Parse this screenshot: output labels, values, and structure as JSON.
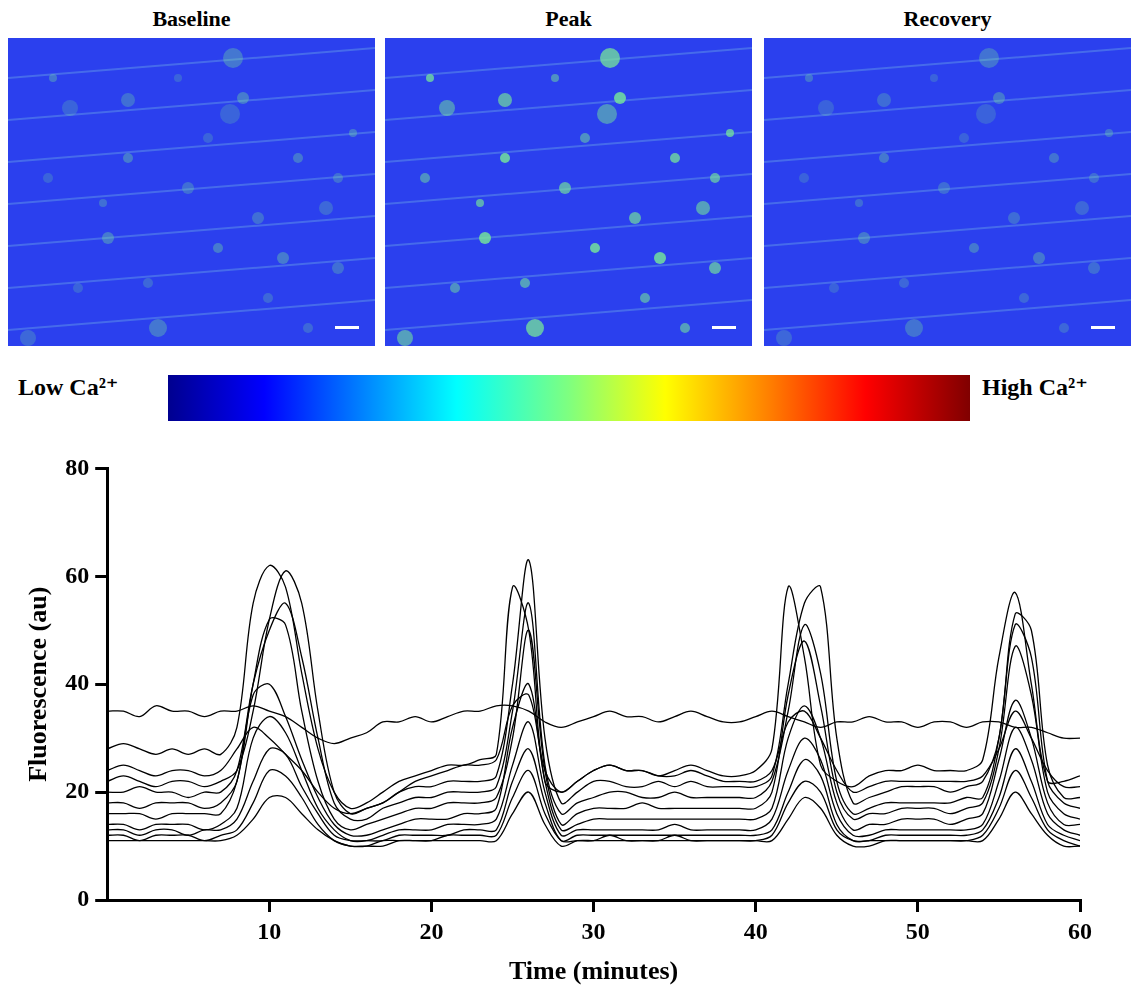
{
  "figure": {
    "panels": [
      {
        "title": "Baseline"
      },
      {
        "title": "Peak"
      },
      {
        "title": "Recovery"
      }
    ],
    "colorbar": {
      "low_label": "Low Ca²⁺",
      "high_label": "High Ca²⁺"
    }
  },
  "chart_data": {
    "type": "line",
    "x_label": "Time (minutes)",
    "y_label": "Fluorescence (au)",
    "color": "#000000",
    "grid": false,
    "x": [
      0,
      1,
      2,
      3,
      4,
      5,
      6,
      7,
      8,
      9,
      10,
      11,
      12,
      13,
      14,
      15,
      16,
      17,
      18,
      19,
      20,
      21,
      22,
      23,
      24,
      25,
      26,
      27,
      28,
      29,
      30,
      31,
      32,
      33,
      34,
      35,
      36,
      37,
      38,
      39,
      40,
      41,
      42,
      43,
      44,
      45,
      46,
      47,
      48,
      49,
      50,
      51,
      52,
      53,
      54,
      55,
      56,
      57,
      58,
      59,
      60
    ],
    "xlim": [
      0,
      60
    ],
    "xticks": [
      10,
      20,
      30,
      40,
      50,
      60
    ],
    "ylim": [
      0,
      80
    ],
    "yticks": [
      0,
      20,
      40,
      60,
      80
    ],
    "series": [
      {
        "values": [
          35,
          35,
          34,
          36,
          35,
          35,
          34,
          35,
          35,
          36,
          35,
          34,
          32,
          30,
          29,
          30,
          31,
          33,
          33,
          34,
          33,
          34,
          35,
          35,
          36,
          36,
          35,
          33,
          32,
          33,
          34,
          35,
          34,
          34,
          33,
          34,
          35,
          34,
          33,
          33,
          34,
          35,
          34,
          33,
          32,
          33,
          33,
          34,
          33,
          33,
          32,
          33,
          33,
          32,
          33,
          33,
          32,
          32,
          31,
          30,
          30
        ]
      },
      {
        "values": [
          28,
          29,
          28,
          27,
          28,
          27,
          28,
          27,
          32,
          55,
          62,
          58,
          42,
          28,
          20,
          17,
          18,
          20,
          22,
          23,
          24,
          25,
          25,
          26,
          27,
          58,
          50,
          22,
          20,
          22,
          24,
          25,
          24,
          24,
          23,
          24,
          25,
          24,
          23,
          23,
          24,
          28,
          58,
          45,
          25,
          22,
          21,
          23,
          24,
          24,
          25,
          24,
          24,
          24,
          26,
          45,
          57,
          40,
          22,
          22,
          23
        ]
      },
      {
        "values": [
          22,
          23,
          22,
          21,
          22,
          22,
          21,
          22,
          24,
          35,
          52,
          61,
          55,
          35,
          20,
          16,
          17,
          18,
          20,
          21,
          21,
          22,
          22,
          22,
          23,
          40,
          63,
          30,
          18,
          20,
          22,
          22,
          21,
          21,
          22,
          21,
          22,
          21,
          21,
          21,
          21,
          23,
          40,
          55,
          58,
          30,
          18,
          19,
          20,
          21,
          21,
          21,
          20,
          21,
          22,
          30,
          53,
          50,
          25,
          19,
          19
        ]
      },
      {
        "values": [
          20,
          20,
          21,
          20,
          20,
          19,
          20,
          20,
          24,
          40,
          50,
          55,
          45,
          30,
          18,
          15,
          15,
          17,
          18,
          19,
          19,
          20,
          20,
          20,
          21,
          35,
          55,
          25,
          16,
          18,
          19,
          20,
          20,
          19,
          19,
          20,
          19,
          19,
          19,
          19,
          19,
          22,
          35,
          51,
          42,
          22,
          16,
          17,
          18,
          18,
          18,
          18,
          18,
          19,
          19,
          30,
          51,
          45,
          22,
          18,
          17
        ]
      },
      {
        "values": [
          18,
          18,
          17,
          18,
          18,
          18,
          17,
          18,
          22,
          40,
          52,
          51,
          35,
          22,
          15,
          13,
          14,
          15,
          16,
          17,
          17,
          18,
          18,
          18,
          19,
          30,
          50,
          24,
          14,
          16,
          17,
          17,
          17,
          18,
          17,
          17,
          17,
          17,
          17,
          17,
          17,
          20,
          38,
          48,
          36,
          20,
          15,
          16,
          16,
          17,
          17,
          17,
          16,
          17,
          18,
          28,
          47,
          38,
          20,
          16,
          15
        ]
      },
      {
        "values": [
          16,
          16,
          16,
          15,
          16,
          16,
          16,
          16,
          22,
          38,
          40,
          34,
          26,
          19,
          14,
          12,
          12,
          13,
          14,
          15,
          15,
          15,
          16,
          16,
          17,
          32,
          40,
          22,
          13,
          14,
          15,
          15,
          15,
          15,
          15,
          15,
          15,
          15,
          15,
          15,
          15,
          17,
          30,
          36,
          30,
          18,
          13,
          14,
          14,
          15,
          15,
          15,
          14,
          15,
          16,
          26,
          37,
          30,
          18,
          14,
          14
        ]
      },
      {
        "values": [
          14,
          14,
          13,
          14,
          14,
          14,
          13,
          14,
          17,
          30,
          34,
          31,
          24,
          17,
          13,
          11,
          11,
          12,
          13,
          13,
          13,
          14,
          14,
          14,
          15,
          25,
          33,
          20,
          12,
          13,
          13,
          13,
          13,
          13,
          13,
          14,
          13,
          13,
          13,
          13,
          13,
          15,
          24,
          30,
          26,
          16,
          12,
          12,
          13,
          13,
          13,
          13,
          13,
          13,
          14,
          22,
          32,
          26,
          16,
          13,
          12
        ]
      },
      {
        "values": [
          13,
          13,
          12,
          13,
          13,
          12,
          13,
          13,
          15,
          22,
          28,
          27,
          21,
          16,
          12,
          11,
          11,
          11,
          12,
          12,
          12,
          12,
          13,
          13,
          13,
          22,
          28,
          18,
          11,
          12,
          12,
          12,
          12,
          12,
          12,
          12,
          12,
          12,
          12,
          12,
          12,
          13,
          20,
          26,
          23,
          14,
          11,
          11,
          12,
          12,
          12,
          12,
          12,
          12,
          13,
          19,
          28,
          22,
          14,
          12,
          11
        ]
      },
      {
        "values": [
          12,
          12,
          11,
          12,
          12,
          12,
          11,
          12,
          13,
          18,
          24,
          23,
          19,
          14,
          11,
          10,
          10,
          11,
          11,
          11,
          11,
          12,
          12,
          12,
          12,
          19,
          24,
          16,
          11,
          11,
          11,
          12,
          11,
          11,
          11,
          12,
          11,
          11,
          11,
          11,
          11,
          12,
          18,
          22,
          20,
          13,
          11,
          11,
          11,
          11,
          11,
          11,
          11,
          11,
          12,
          17,
          24,
          19,
          13,
          11,
          10
        ]
      },
      {
        "values": [
          24,
          25,
          24,
          23,
          24,
          24,
          23,
          24,
          28,
          32,
          30,
          27,
          24,
          20,
          17,
          16,
          17,
          18,
          20,
          22,
          23,
          24,
          25,
          25,
          26,
          36,
          38,
          24,
          20,
          22,
          24,
          25,
          24,
          24,
          23,
          23,
          24,
          23,
          22,
          22,
          22,
          24,
          33,
          35,
          30,
          24,
          20,
          21,
          22,
          22,
          22,
          22,
          22,
          22,
          23,
          28,
          35,
          30,
          24,
          21,
          21
        ]
      },
      {
        "values": [
          11,
          11,
          11,
          11,
          11,
          11,
          11,
          11,
          12,
          15,
          19,
          19,
          16,
          13,
          11,
          10,
          10,
          10,
          11,
          11,
          11,
          11,
          11,
          11,
          11,
          16,
          20,
          14,
          10,
          11,
          11,
          11,
          11,
          11,
          11,
          11,
          11,
          11,
          11,
          11,
          11,
          11,
          15,
          19,
          17,
          12,
          10,
          10,
          11,
          11,
          11,
          11,
          11,
          11,
          11,
          15,
          20,
          16,
          12,
          10,
          10
        ]
      }
    ]
  }
}
